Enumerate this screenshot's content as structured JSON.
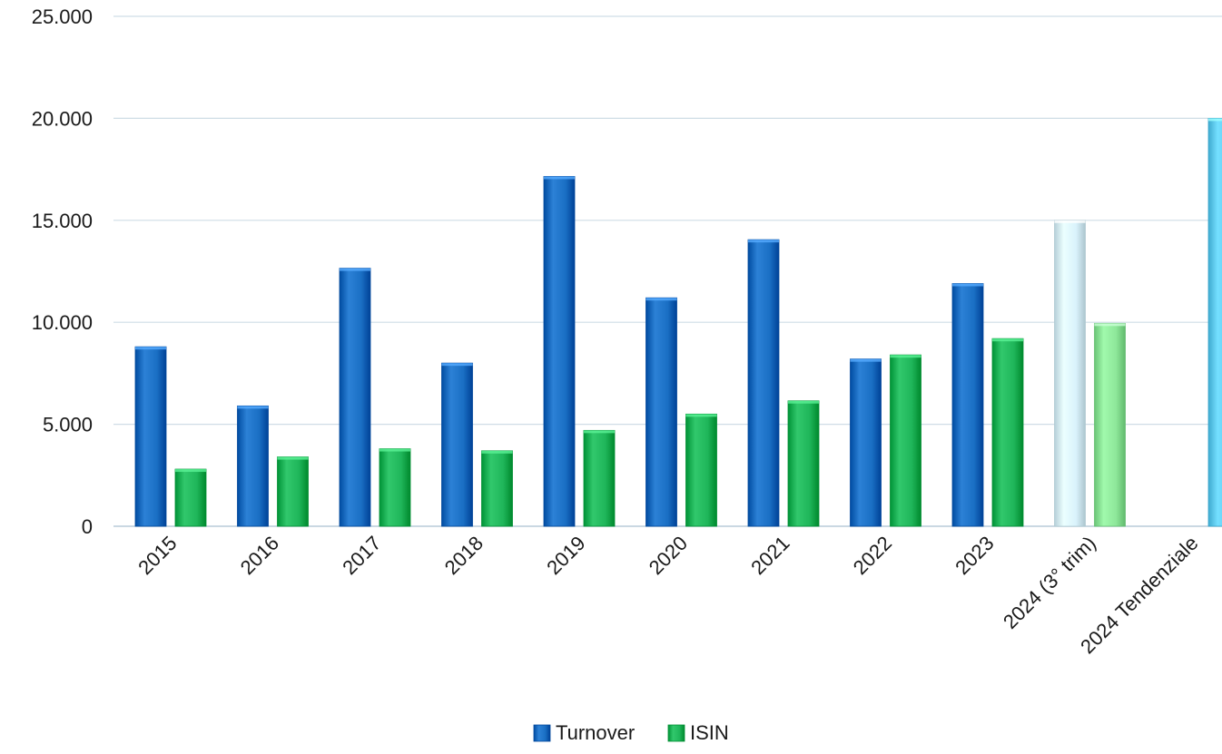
{
  "chart_data": {
    "type": "bar",
    "title": "",
    "xlabel": "",
    "ylabel": "",
    "ylim": [
      0,
      25000
    ],
    "yticks": [
      0,
      5000,
      10000,
      15000,
      20000,
      25000
    ],
    "ytick_labels": [
      "0",
      "5.000",
      "10.000",
      "15.000",
      "20.000",
      "25.000"
    ],
    "grid": true,
    "legend_position": "bottom-center",
    "categories": [
      "2015",
      "2016",
      "2017",
      "2018",
      "2019",
      "2020",
      "2021",
      "2022",
      "2023",
      "2024 (3° trim)",
      "2024 Tendenziale"
    ],
    "series": [
      {
        "name": "Turnover",
        "color": "#1a6fc4",
        "values": [
          8800,
          5900,
          12650,
          8000,
          17150,
          11200,
          14050,
          8200,
          11900,
          15000,
          20000
        ],
        "point_colors": [
          "#1a6fc4",
          "#1a6fc4",
          "#1a6fc4",
          "#1a6fc4",
          "#1a6fc4",
          "#1a6fc4",
          "#1a6fc4",
          "#1a6fc4",
          "#1a6fc4",
          "#d9f2fb",
          "#62cdf2"
        ]
      },
      {
        "name": "ISIN",
        "color": "#1fb65a",
        "values": [
          2800,
          3400,
          3800,
          3700,
          4700,
          5500,
          6150,
          8400,
          9200,
          9950,
          null
        ],
        "point_colors": [
          "#1fb65a",
          "#1fb65a",
          "#1fb65a",
          "#1fb65a",
          "#1fb65a",
          "#1fb65a",
          "#1fb65a",
          "#1fb65a",
          "#1fb65a",
          "#8ee79a",
          null
        ]
      }
    ]
  }
}
